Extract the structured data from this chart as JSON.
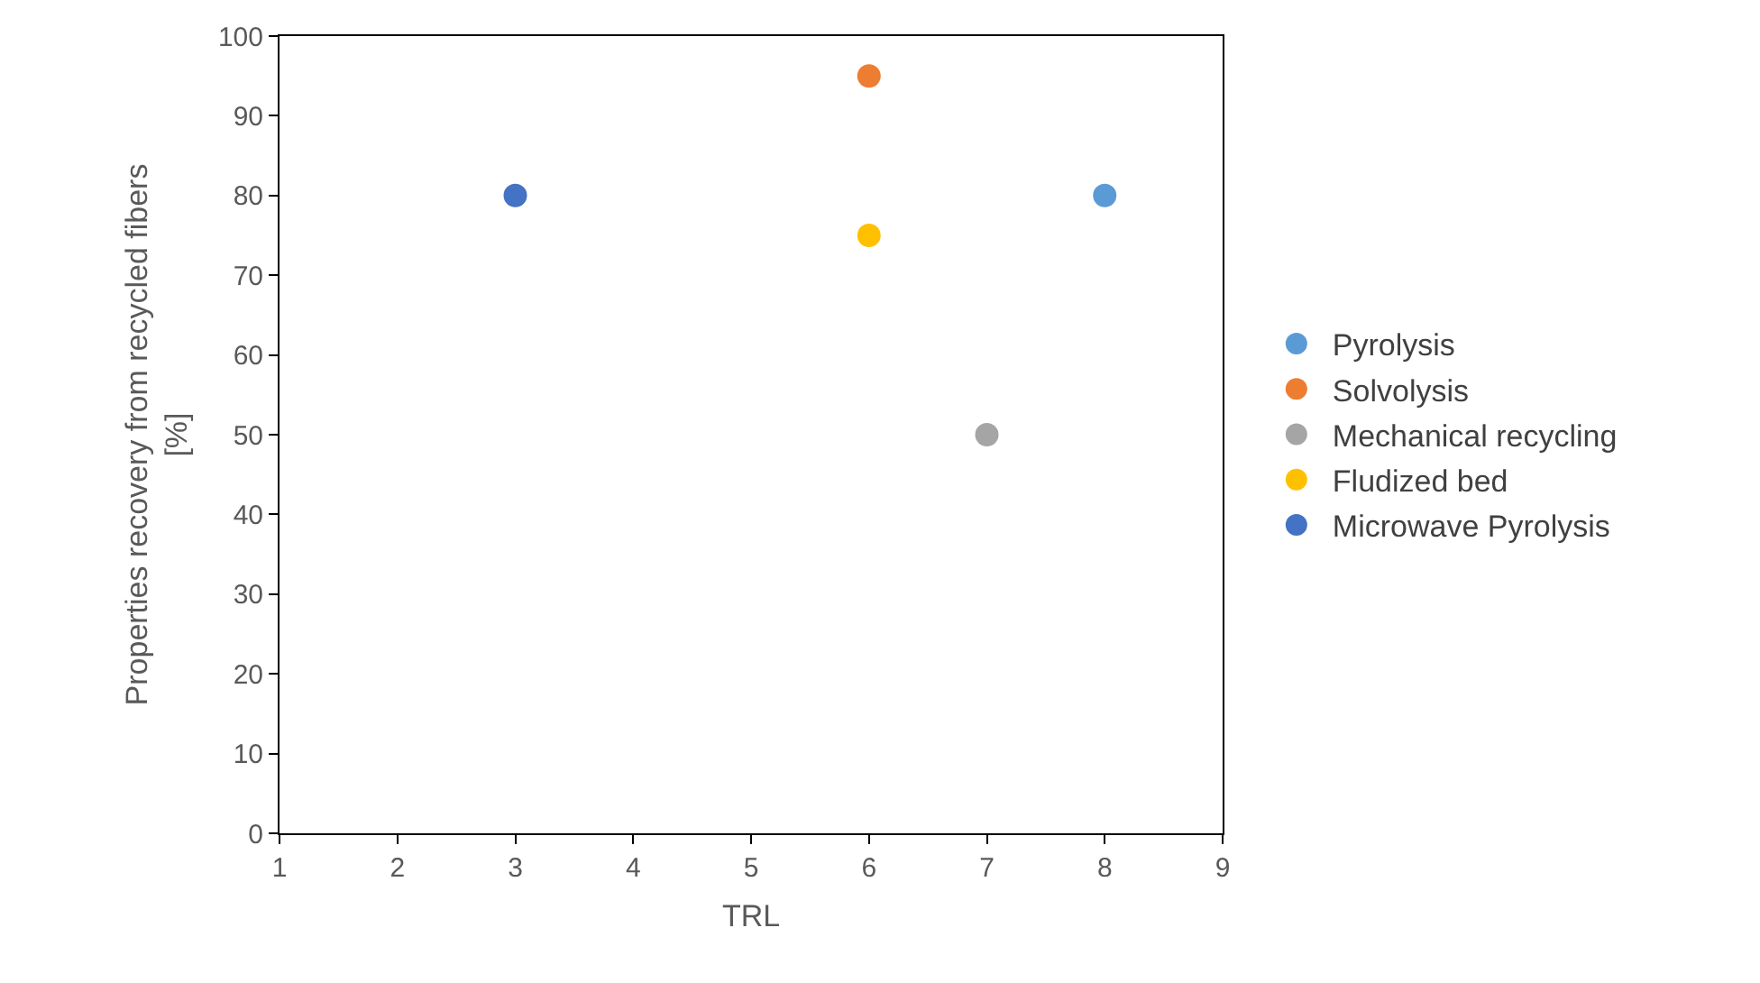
{
  "chart_data": {
    "type": "scatter",
    "xlabel": "TRL",
    "ylabel": "Properties recovery from recycled fibers\n[%]",
    "series": [
      {
        "name": "Pyrolysis",
        "color": "#5b9bd5",
        "x": [
          8
        ],
        "values": [
          80
        ]
      },
      {
        "name": "Solvolysis",
        "color": "#ed7d31",
        "x": [
          6
        ],
        "values": [
          95
        ]
      },
      {
        "name": "Mechanical recycling",
        "color": "#a5a5a5",
        "x": [
          7
        ],
        "values": [
          50
        ]
      },
      {
        "name": "Fludized bed",
        "color": "#ffc000",
        "x": [
          6
        ],
        "values": [
          75
        ]
      },
      {
        "name": "Microwave Pyrolysis",
        "color": "#4472c4",
        "x": [
          3
        ],
        "values": [
          80
        ]
      }
    ],
    "xlim": [
      1,
      9
    ],
    "xticks": [
      1,
      2,
      3,
      4,
      5,
      6,
      7,
      8,
      9
    ],
    "ylim": [
      0,
      100
    ],
    "yticks": [
      0,
      10,
      20,
      30,
      40,
      50,
      60,
      70,
      80,
      90,
      100
    ],
    "grid": false,
    "legend": "right",
    "marker": "circle"
  }
}
